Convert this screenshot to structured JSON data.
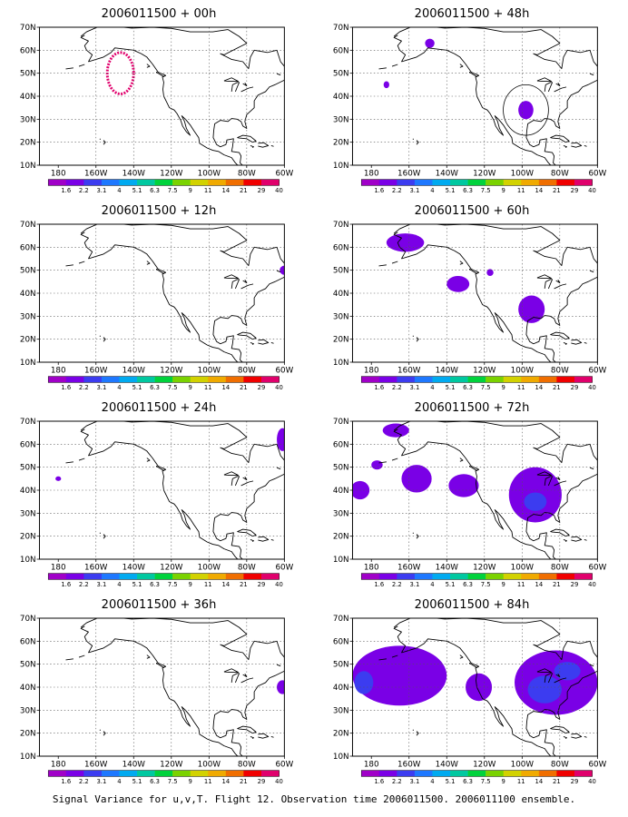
{
  "panels": [
    {
      "title": "2006011500 + 00h",
      "blobs": [
        {
          "type": "ring",
          "lon": -147,
          "lat": 50,
          "rx": 7,
          "ry": 9,
          "color": "#e0006c"
        }
      ]
    },
    {
      "title": "2006011500 + 48h",
      "blobs": [
        {
          "type": "fill",
          "lon": -149,
          "lat": 63,
          "rx": 2.5,
          "ry": 2,
          "level": 0
        },
        {
          "type": "fill",
          "lon": -172,
          "lat": 45,
          "rx": 1.5,
          "ry": 1.5,
          "level": 0
        },
        {
          "type": "fill",
          "lon": -98,
          "lat": 34,
          "rx": 4,
          "ry": 4,
          "level": 0
        },
        {
          "type": "circle",
          "lon": -98,
          "lat": 34,
          "rx": 12,
          "ry": 11
        }
      ]
    },
    {
      "title": "2006011500 + 12h",
      "blobs": [
        {
          "type": "fill",
          "lon": -60,
          "lat": 50,
          "rx": 2.5,
          "ry": 2,
          "level": 0
        }
      ]
    },
    {
      "title": "2006011500 + 60h",
      "blobs": [
        {
          "type": "fill",
          "lon": -162,
          "lat": 62,
          "rx": 10,
          "ry": 4,
          "level": 0
        },
        {
          "type": "fill",
          "lon": -134,
          "lat": 44,
          "rx": 6,
          "ry": 3.5,
          "level": 0
        },
        {
          "type": "fill",
          "lon": -117,
          "lat": 49,
          "rx": 1.8,
          "ry": 1.5,
          "level": 0
        },
        {
          "type": "fill",
          "lon": -95,
          "lat": 33,
          "rx": 7,
          "ry": 6,
          "level": 0
        }
      ]
    },
    {
      "title": "2006011500 + 24h",
      "blobs": [
        {
          "type": "fill",
          "lon": -180,
          "lat": 45,
          "rx": 1.5,
          "ry": 1,
          "level": 0
        },
        {
          "type": "fill",
          "lon": -61,
          "lat": 62,
          "rx": 3,
          "ry": 5,
          "level": 0
        }
      ]
    },
    {
      "title": "2006011500 + 72h",
      "blobs": [
        {
          "type": "fill",
          "lon": -167,
          "lat": 66,
          "rx": 7,
          "ry": 3,
          "level": 0
        },
        {
          "type": "fill",
          "lon": -177,
          "lat": 51,
          "rx": 3,
          "ry": 2,
          "level": 0
        },
        {
          "type": "fill",
          "lon": -186,
          "lat": 40,
          "rx": 5,
          "ry": 4,
          "level": 0
        },
        {
          "type": "fill",
          "lon": -156,
          "lat": 45,
          "rx": 8,
          "ry": 6,
          "level": 0
        },
        {
          "type": "fill",
          "lon": -131,
          "lat": 42,
          "rx": 8,
          "ry": 5,
          "level": 0
        },
        {
          "type": "fill",
          "lon": -93,
          "lat": 38,
          "rx": 14,
          "ry": 12,
          "level": 0
        },
        {
          "type": "fill",
          "lon": -93,
          "lat": 35,
          "rx": 6,
          "ry": 4,
          "level": 1
        }
      ]
    },
    {
      "title": "2006011500 + 36h",
      "blobs": [
        {
          "type": "fill",
          "lon": -61,
          "lat": 40,
          "rx": 3,
          "ry": 3,
          "level": 0
        }
      ]
    },
    {
      "title": "2006011500 + 84h",
      "blobs": [
        {
          "type": "fill",
          "lon": -165,
          "lat": 45,
          "rx": 25,
          "ry": 13,
          "level": 0
        },
        {
          "type": "fill",
          "lon": -152,
          "lat": 48,
          "rx": 8,
          "ry": 6,
          "level": 0
        },
        {
          "type": "fill",
          "lon": -184,
          "lat": 42,
          "rx": 5,
          "ry": 5,
          "level": 1
        },
        {
          "type": "fill",
          "lon": -123,
          "lat": 40,
          "rx": 7,
          "ry": 6,
          "level": 0
        },
        {
          "type": "fill",
          "lon": -82,
          "lat": 42,
          "rx": 22,
          "ry": 14,
          "level": 0
        },
        {
          "type": "fill",
          "lon": -88,
          "lat": 39,
          "rx": 9,
          "ry": 6,
          "level": 1
        },
        {
          "type": "fill",
          "lon": -76,
          "lat": 47,
          "rx": 7,
          "ry": 4,
          "level": 1
        }
      ]
    }
  ],
  "axes": {
    "x_ticks": [
      "180",
      "160W",
      "140W",
      "120W",
      "100W",
      "80W",
      "60W"
    ],
    "y_ticks": [
      "10N",
      "20N",
      "30N",
      "40N",
      "50N",
      "60N",
      "70N"
    ],
    "lon_range": [
      -190,
      -60
    ],
    "lat_range": [
      10,
      70
    ]
  },
  "colorbar": {
    "labels": [
      "1.6",
      "2.2",
      "3.1",
      "4",
      "5.1",
      "6.3",
      "7.5",
      "9",
      "11",
      "14",
      "21",
      "29",
      "40"
    ],
    "colors": [
      "#a000c8",
      "#7a00e6",
      "#3c3cf0",
      "#1e78ff",
      "#00aaf0",
      "#00c8a0",
      "#00d23c",
      "#7ad200",
      "#d2d200",
      "#f0aa00",
      "#f06e00",
      "#f00000",
      "#e0006c"
    ]
  },
  "caption": "Signal Variance for u,v,T. Flight 12. Observation time 2006011500. 2006011100 ensemble."
}
